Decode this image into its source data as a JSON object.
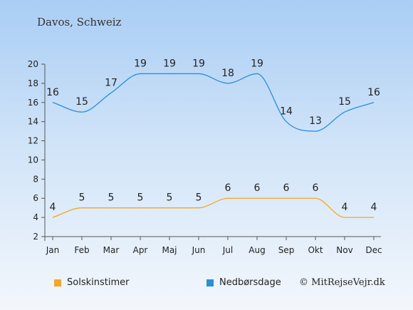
{
  "chart_data": {
    "type": "line",
    "title": "Davos, Schweiz",
    "categories": [
      "Jan",
      "Feb",
      "Mar",
      "Apr",
      "Maj",
      "Jun",
      "Jul",
      "Aug",
      "Sep",
      "Okt",
      "Nov",
      "Dec"
    ],
    "series": [
      {
        "name": "Solskinstimer",
        "color": "#f5a623",
        "values": [
          4,
          5,
          5,
          5,
          5,
          5,
          6,
          6,
          6,
          6,
          4,
          4
        ]
      },
      {
        "name": "Nedbørsdage",
        "color": "#2b8fd8",
        "values": [
          16,
          15,
          17,
          19,
          19,
          19,
          18,
          19,
          14,
          13,
          15,
          16
        ]
      }
    ],
    "yticks": [
      2,
      4,
      6,
      8,
      10,
      12,
      14,
      16,
      18,
      20
    ],
    "ylim": [
      2,
      20
    ],
    "legend_position": "bottom",
    "grid": false
  },
  "legend": {
    "sun_label": "Solskinstimer",
    "rain_label": "Nedbørsdage"
  },
  "copyright": "© MitRejseVejr.dk"
}
